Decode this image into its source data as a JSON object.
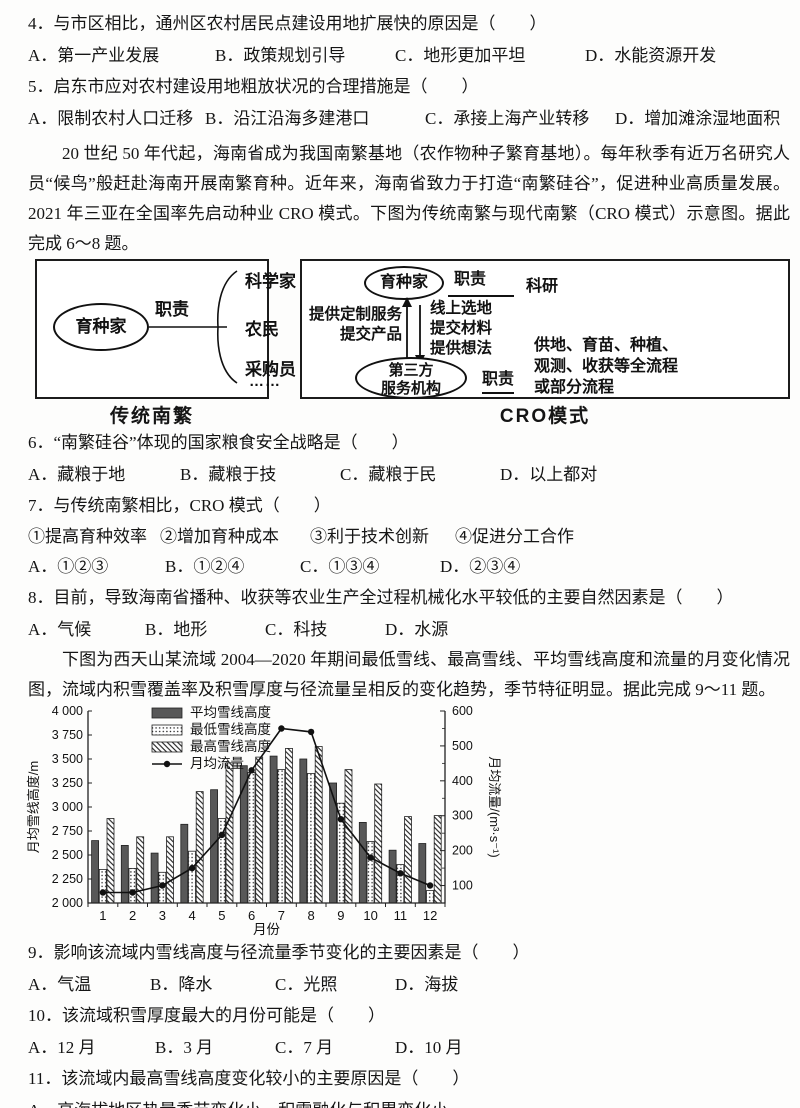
{
  "questions": {
    "q4": {
      "stem": "4．与市区相比，通州区农村居民点建设用地扩展快的原因是（　　）",
      "options": [
        "A．第一产业发展",
        "B．政策规划引导",
        "C．地形更加平坦",
        "D．水能资源开发"
      ]
    },
    "q5": {
      "stem": "5．启东市应对农村建设用地粗放状况的合理措施是（　　）",
      "options": [
        "A．限制农村人口迁移",
        "B．沿江沿海多建港口",
        "C．承接上海产业转移",
        "D．增加滩涂湿地面积"
      ]
    },
    "q6": {
      "stem": "6．“南繁硅谷”体现的国家粮食安全战略是（　　）",
      "options": [
        "A．藏粮于地",
        "B．藏粮于技",
        "C．藏粮于民",
        "D．以上都对"
      ]
    },
    "q7": {
      "stem": "7．与传统南繁相比，CRO 模式（　　）",
      "items": [
        "①提高育种效率",
        "②增加育种成本",
        "③利于技术创新",
        "④促进分工合作"
      ],
      "options": [
        "A．①②③",
        "B．①②④",
        "C．①③④",
        "D．②③④"
      ]
    },
    "q8": {
      "stem": "8．目前，导致海南省播种、收获等农业生产全过程机械化水平较低的主要自然因素是（　　）",
      "options": [
        "A．气候",
        "B．地形",
        "C．科技",
        "D．水源"
      ]
    },
    "q9": {
      "stem": "9．影响该流域内雪线高度与径流量季节变化的主要因素是（　　）",
      "options": [
        "A．气温",
        "B．降水",
        "C．光照",
        "D．海拔"
      ]
    },
    "q10": {
      "stem": "10．该流域积雪厚度最大的月份可能是（　　）",
      "options": [
        "A．12 月",
        "B．3 月",
        "C．7 月",
        "D．10 月"
      ]
    },
    "q11": {
      "stem": "11．该流域内最高雪线高度变化较小的主要原因是（　　）",
      "options": [
        "A．高海拔地区热量季节变化小，积雪融化与积累变化小"
      ]
    }
  },
  "passages": {
    "p1": "20 世纪 50 年代起，海南省成为我国南繁基地（农作物种子繁育基地）。每年秋季有近万名研究人员“候鸟”般赶赴海南开展南繁育种。近年来，海南省致力于打造“南繁硅谷”，促进种业高质量发展。2021 年三亚在全国率先启动种业 CRO 模式。下图为传统南繁与现代南繁（CRO 模式）示意图。据此完成 6～8 题。",
    "p2": "下图为西天山某流域 2004—2020 年期间最低雪线、最高雪线、平均雪线高度和流量的月变化情况图，流域内积雪覆盖率及积雪厚度与径流量呈相反的变化趋势，季节特征明显。据此完成 9～11 题。"
  },
  "diagram": {
    "left": {
      "ellipse": "育种家",
      "edge_label": "职责",
      "items": [
        "科学家",
        "农民",
        "采购员",
        "……"
      ],
      "caption": "传统南繁"
    },
    "right": {
      "top_ellipse": "育种家",
      "top_edge_label": "职责",
      "top_role": "科研",
      "left_labels": [
        "提供定制服务",
        "提交产品"
      ],
      "right_labels": [
        "线上选地",
        "提交材料",
        "提供想法"
      ],
      "bottom_ellipse": [
        "第三方",
        "服务机构"
      ],
      "bottom_edge_label": "职责",
      "bottom_role": [
        "供地、育苗、种植、",
        "观测、收获等全流程",
        "或部分流程"
      ],
      "caption": "CRO模式"
    }
  },
  "chart_data": {
    "type": "bar",
    "categories": [
      "1",
      "2",
      "3",
      "4",
      "5",
      "6",
      "7",
      "8",
      "9",
      "10",
      "11",
      "12"
    ],
    "series": [
      {
        "name": "平均雪线高度",
        "kind": "bar",
        "pattern": "solid-gray",
        "values": [
          2650,
          2600,
          2520,
          2820,
          3180,
          3430,
          3530,
          3500,
          3250,
          2840,
          2550,
          2620
        ]
      },
      {
        "name": "最低雪线高度",
        "kind": "bar",
        "pattern": "dots",
        "values": [
          2350,
          2360,
          2320,
          2540,
          2880,
          3360,
          3390,
          3350,
          3040,
          2640,
          2400,
          2130
        ]
      },
      {
        "name": "最高雪线高度",
        "kind": "bar",
        "pattern": "diagonal-hatch",
        "values": [
          2880,
          2690,
          2690,
          3160,
          3460,
          3520,
          3610,
          3630,
          3390,
          3240,
          2900,
          2910
        ]
      },
      {
        "name": "月均流量",
        "kind": "line",
        "axis": "right",
        "marker": "filled-circle",
        "values": [
          80,
          80,
          100,
          150,
          245,
          430,
          550,
          540,
          290,
          180,
          135,
          100
        ]
      }
    ],
    "xlabel": "月份",
    "ylabel_left": "月均雪线高度/m",
    "ylabel_right": "月均流量/(m³·s⁻¹)",
    "ylim_left": [
      2000,
      4000
    ],
    "yticks_left": [
      "2 000",
      "2 250",
      "2 500",
      "2 750",
      "3 000",
      "3 250",
      "3 500",
      "3 750",
      "4 000"
    ],
    "ylim_right": [
      50,
      600
    ],
    "yticks_right": [
      100,
      200,
      300,
      400,
      500,
      600
    ],
    "legend_position": "top-left-inside",
    "grid": false
  }
}
